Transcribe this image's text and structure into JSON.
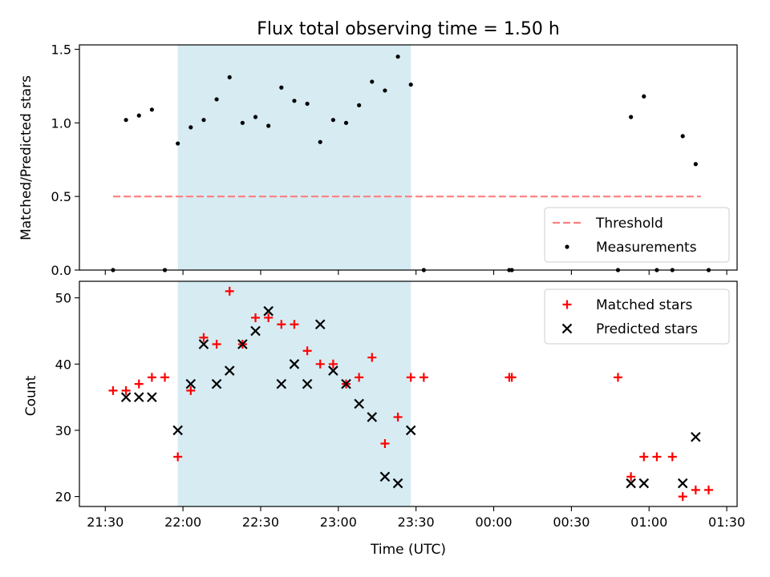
{
  "chart_data": {
    "type": "scatter",
    "title": "Flux total observing time = 1.50 h",
    "xlabel": "Time (UTC)",
    "x_ticks": [
      "21:30",
      "22:00",
      "22:30",
      "23:00",
      "23:30",
      "00:00",
      "00:30",
      "01:00",
      "01:30"
    ],
    "xlim": [
      "21:20",
      "01:34"
    ],
    "shaded_span": {
      "start": "21:58",
      "end": "23:28",
      "color": "#add8e6"
    },
    "panels": [
      {
        "ylabel": "Matched/Predicted stars",
        "ylim": [
          0,
          1.53
        ],
        "y_ticks": [
          "0.0",
          "0.5",
          "1.0",
          "1.5"
        ],
        "legend_position": "lower-right",
        "threshold": {
          "name": "Threshold",
          "value": 0.5,
          "x_start": "21:33",
          "x_end": "01:20",
          "color": "#ff7f7f"
        },
        "series": [
          {
            "name": "Measurements",
            "marker": "dot",
            "color": "#000000",
            "points": [
              [
                "21:33",
                0.0
              ],
              [
                "21:38",
                1.02
              ],
              [
                "21:43",
                1.05
              ],
              [
                "21:48",
                1.09
              ],
              [
                "21:53",
                0.0
              ],
              [
                "21:58",
                0.86
              ],
              [
                "22:03",
                0.97
              ],
              [
                "22:08",
                1.02
              ],
              [
                "22:13",
                1.16
              ],
              [
                "22:18",
                1.31
              ],
              [
                "22:23",
                1.0
              ],
              [
                "22:28",
                1.04
              ],
              [
                "22:33",
                0.98
              ],
              [
                "22:38",
                1.24
              ],
              [
                "22:43",
                1.15
              ],
              [
                "22:48",
                1.13
              ],
              [
                "22:53",
                0.87
              ],
              [
                "22:58",
                1.02
              ],
              [
                "23:03",
                1.0
              ],
              [
                "23:08",
                1.12
              ],
              [
                "23:13",
                1.28
              ],
              [
                "23:18",
                1.22
              ],
              [
                "23:23",
                1.45
              ],
              [
                "23:28",
                1.26
              ],
              [
                "23:33",
                0.0
              ],
              [
                "00:06",
                0.0
              ],
              [
                "00:07",
                0.0
              ],
              [
                "00:48",
                0.0
              ],
              [
                "00:53",
                1.04
              ],
              [
                "00:58",
                1.18
              ],
              [
                "01:03",
                0.0
              ],
              [
                "01:09",
                0.0
              ],
              [
                "01:13",
                0.91
              ],
              [
                "01:18",
                0.72
              ],
              [
                "01:23",
                0.0
              ]
            ]
          }
        ]
      },
      {
        "ylabel": "Count",
        "ylim": [
          18.5,
          52.5
        ],
        "y_ticks": [
          "20",
          "30",
          "40",
          "50"
        ],
        "legend_position": "upper-right",
        "series": [
          {
            "name": "Matched stars",
            "marker": "plus",
            "color": "#ff0000",
            "points": [
              [
                "21:33",
                36
              ],
              [
                "21:38",
                36
              ],
              [
                "21:43",
                37
              ],
              [
                "21:48",
                38
              ],
              [
                "21:53",
                38
              ],
              [
                "21:58",
                26
              ],
              [
                "22:03",
                36
              ],
              [
                "22:08",
                44
              ],
              [
                "22:13",
                43
              ],
              [
                "22:18",
                51
              ],
              [
                "22:23",
                43
              ],
              [
                "22:28",
                47
              ],
              [
                "22:33",
                47
              ],
              [
                "22:38",
                46
              ],
              [
                "22:43",
                46
              ],
              [
                "22:48",
                42
              ],
              [
                "22:53",
                40
              ],
              [
                "22:58",
                40
              ],
              [
                "23:03",
                37
              ],
              [
                "23:08",
                38
              ],
              [
                "23:13",
                41
              ],
              [
                "23:18",
                28
              ],
              [
                "23:23",
                32
              ],
              [
                "23:28",
                38
              ],
              [
                "23:33",
                38
              ],
              [
                "00:06",
                38
              ],
              [
                "00:07",
                38
              ],
              [
                "00:48",
                38
              ],
              [
                "00:53",
                23
              ],
              [
                "00:58",
                26
              ],
              [
                "01:03",
                26
              ],
              [
                "01:09",
                26
              ],
              [
                "01:13",
                20
              ],
              [
                "01:18",
                21
              ],
              [
                "01:23",
                21
              ]
            ]
          },
          {
            "name": "Predicted stars",
            "marker": "x",
            "color": "#000000",
            "points": [
              [
                "21:38",
                35
              ],
              [
                "21:43",
                35
              ],
              [
                "21:48",
                35
              ],
              [
                "21:58",
                30
              ],
              [
                "22:03",
                37
              ],
              [
                "22:08",
                43
              ],
              [
                "22:13",
                37
              ],
              [
                "22:18",
                39
              ],
              [
                "22:23",
                43
              ],
              [
                "22:28",
                45
              ],
              [
                "22:33",
                48
              ],
              [
                "22:38",
                37
              ],
              [
                "22:43",
                40
              ],
              [
                "22:48",
                37
              ],
              [
                "22:53",
                46
              ],
              [
                "22:58",
                39
              ],
              [
                "23:03",
                37
              ],
              [
                "23:08",
                34
              ],
              [
                "23:13",
                32
              ],
              [
                "23:18",
                23
              ],
              [
                "23:23",
                22
              ],
              [
                "23:28",
                30
              ],
              [
                "00:53",
                22
              ],
              [
                "00:58",
                22
              ],
              [
                "01:13",
                22
              ],
              [
                "01:18",
                29
              ]
            ]
          }
        ]
      }
    ]
  }
}
